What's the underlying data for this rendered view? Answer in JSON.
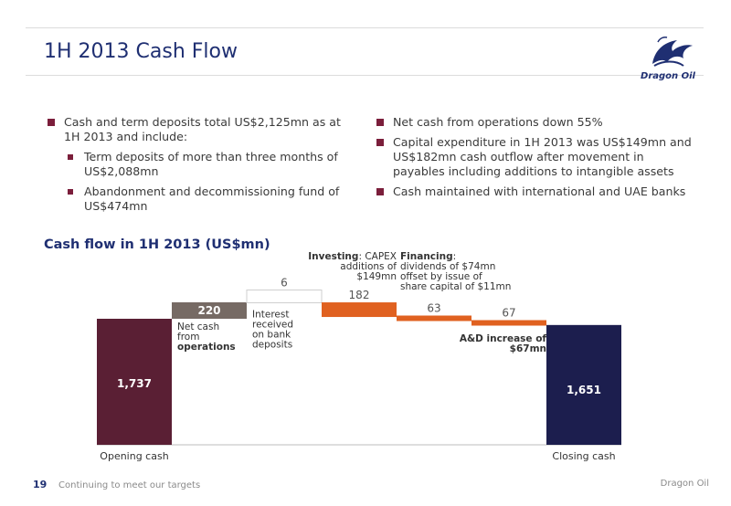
{
  "slide": {
    "title": "1H 2013 Cash Flow",
    "logo_text": "Dragon Oil",
    "left_bullets": [
      {
        "text": "Cash and term deposits total US$2,125mn as at 1H 2013 and include:",
        "subs": [
          "Term deposits of more than three months of US$2,088mn",
          "Abandonment and decommissioning fund of US$474mn"
        ]
      }
    ],
    "right_bullets": [
      "Net cash from operations down 55%",
      "Capital expenditure in 1H 2013 was US$149mn and US$182mn cash outflow after movement in payables including additions to intangible assets",
      "Cash maintained with international and UAE banks"
    ],
    "chart_heading": "Cash flow in 1H 2013 (US$mn)",
    "footer": {
      "page": "19",
      "tagline": "Continuing to meet our targets",
      "brand": "Dragon Oil"
    }
  },
  "chart_data": {
    "type": "waterfall",
    "title": "Cash flow in 1H 2013 (US$mn)",
    "steps": [
      {
        "label": "1,737",
        "value": 1737,
        "kind": "total",
        "color": "#5a1f34",
        "axis_label": "Opening cash"
      },
      {
        "label": "220",
        "value": 220,
        "kind": "increase",
        "color": "#766a64",
        "note": [
          "Net cash",
          "from",
          "operations"
        ]
      },
      {
        "label": "6",
        "value": 6,
        "kind": "increase",
        "color": "#d9d9d9",
        "note": [
          "Interest",
          "received",
          "on bank",
          "deposits"
        ]
      },
      {
        "label": "182",
        "value": -182,
        "kind": "decrease",
        "color": "#e06120",
        "note_lead": "Investing",
        "note": [
          ": CAPEX",
          "additions of",
          "$149mn"
        ]
      },
      {
        "label": "63",
        "value": -63,
        "kind": "decrease",
        "color": "#e06120",
        "note_lead": "Financing",
        "note": [
          ":",
          "dividends of $74mn",
          "offset by issue of",
          "share capital of $11mn"
        ]
      },
      {
        "label": "67",
        "value": -67,
        "kind": "decrease",
        "color": "#e06120",
        "note": [
          "A&D increase of",
          "$67mn"
        ]
      },
      {
        "label": "1,651",
        "value": 1651,
        "kind": "total",
        "color": "#1c1e4e",
        "axis_label": "Closing cash"
      }
    ]
  },
  "colors": {
    "title": "#1f2f72",
    "bullet": "#7b1e3b",
    "accent_orange": "#e06120"
  }
}
